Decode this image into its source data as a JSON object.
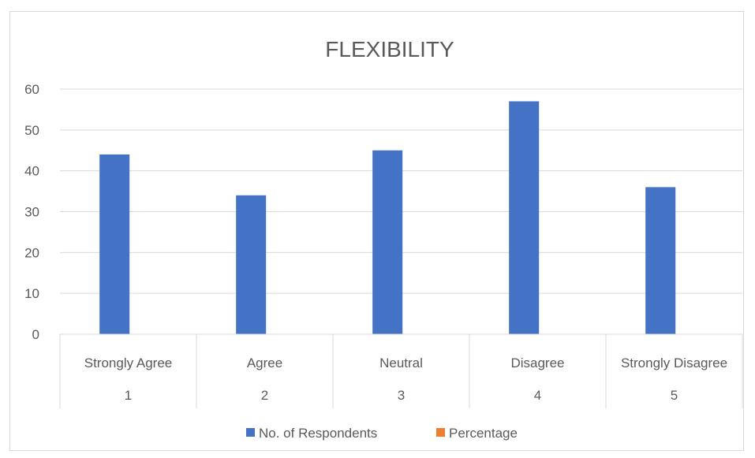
{
  "chart_data": {
    "type": "bar",
    "title": "FLEXIBILITY",
    "categories": [
      {
        "name": "Strongly Agree",
        "index": "1"
      },
      {
        "name": "Agree",
        "index": "2"
      },
      {
        "name": "Neutral",
        "index": "3"
      },
      {
        "name": "Disagree",
        "index": "4"
      },
      {
        "name": "Strongly Disagree",
        "index": "5"
      }
    ],
    "series": [
      {
        "name": "No. of Respondents",
        "color": "#4472c4",
        "values": [
          44,
          34,
          45,
          57,
          36
        ]
      },
      {
        "name": "Percentage",
        "color": "#ed7d31",
        "values": [
          null,
          null,
          null,
          null,
          null
        ]
      }
    ],
    "ylim": [
      0,
      60
    ],
    "yticks": [
      0,
      10,
      20,
      30,
      40,
      50,
      60
    ],
    "grid": true,
    "legend_position": "bottom"
  }
}
